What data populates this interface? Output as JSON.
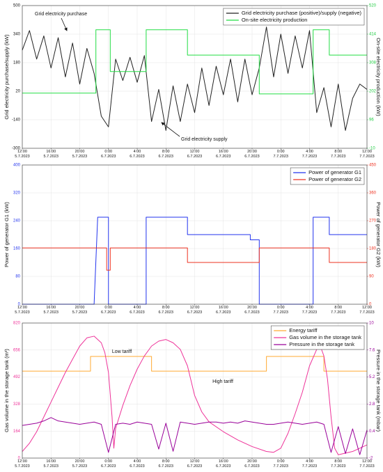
{
  "chart_data": [
    {
      "type": "line",
      "ylabel": "Grid electricity purchase/supply (kW)",
      "y2label": "On-site electricity production (kW)",
      "ycolor": "#111111",
      "y2color": "#22cc44",
      "xlim": [
        "2023-07-05T12:00",
        "2023-07-07T12:00"
      ],
      "xticks": [
        {
          "value": "2023-07-05T12:00",
          "label": "12:00 5.7.2023"
        },
        {
          "value": "2023-07-05T16:00",
          "label": "16:00 5.7.2023"
        },
        {
          "value": "2023-07-05T20:00",
          "label": "20:00 5.7.2023"
        },
        {
          "value": "2023-07-06T00:00",
          "label": "0:00 6.7.2023"
        },
        {
          "value": "2023-07-06T04:00",
          "label": "4:00 6.7.2023"
        },
        {
          "value": "2023-07-06T08:00",
          "label": "8:00 6.7.2023"
        },
        {
          "value": "2023-07-06T12:00",
          "label": "12:00 6.7.2023"
        },
        {
          "value": "2023-07-06T16:00",
          "label": "16:00 6.7.2023"
        },
        {
          "value": "2023-07-06T20:00",
          "label": "20:00 6.7.2023"
        },
        {
          "value": "2023-07-07T00:00",
          "label": "0:00 7.7.2023"
        },
        {
          "value": "2023-07-07T04:00",
          "label": "4:00 7.7.2023"
        },
        {
          "value": "2023-07-07T08:00",
          "label": "8:00 7.7.2023"
        },
        {
          "value": "2023-07-07T12:00",
          "label": "12:00 7.7.2023"
        }
      ],
      "ylim": [
        -300,
        500
      ],
      "yticks": [
        -300,
        -140,
        20,
        180,
        340,
        500
      ],
      "y2lim": [
        -10,
        520
      ],
      "y2ticks": [
        -10,
        96,
        202,
        308,
        414,
        520
      ],
      "grid": true,
      "legend": "upper right",
      "annotations": [
        "Grid electricity purchase",
        "Grid electricity supply"
      ],
      "series": [
        {
          "name": "Grid electricity purchase (positive)/supply (negative)",
          "color": "#222222",
          "x": [
            "2023-07-05T12:00",
            "2023-07-05T13:00",
            "2023-07-05T14:00",
            "2023-07-05T15:00",
            "2023-07-05T16:00",
            "2023-07-05T17:00",
            "2023-07-05T18:00",
            "2023-07-05T19:00",
            "2023-07-05T20:00",
            "2023-07-05T21:00",
            "2023-07-05T22:00",
            "2023-07-05T23:00",
            "2023-07-06T00:00",
            "2023-07-06T01:00",
            "2023-07-06T02:00",
            "2023-07-06T03:00",
            "2023-07-06T04:00",
            "2023-07-06T05:00",
            "2023-07-06T06:00",
            "2023-07-06T07:00",
            "2023-07-06T08:00",
            "2023-07-06T09:00",
            "2023-07-06T10:00",
            "2023-07-06T11:00",
            "2023-07-06T12:00",
            "2023-07-06T13:00",
            "2023-07-06T14:00",
            "2023-07-06T15:00",
            "2023-07-06T16:00",
            "2023-07-06T17:00",
            "2023-07-06T18:00",
            "2023-07-06T19:00",
            "2023-07-06T20:00",
            "2023-07-06T21:00",
            "2023-07-06T22:00",
            "2023-07-06T23:00",
            "2023-07-07T00:00",
            "2023-07-07T01:00",
            "2023-07-07T02:00",
            "2023-07-07T03:00",
            "2023-07-07T04:00",
            "2023-07-07T05:00",
            "2023-07-07T06:00",
            "2023-07-07T07:00",
            "2023-07-07T08:00",
            "2023-07-07T09:00",
            "2023-07-07T10:00",
            "2023-07-07T11:00",
            "2023-07-07T12:00"
          ],
          "values": [
            250,
            360,
            200,
            330,
            150,
            320,
            100,
            290,
            60,
            260,
            120,
            -120,
            -180,
            200,
            80,
            210,
            70,
            220,
            -150,
            30,
            -200,
            50,
            -150,
            60,
            -100,
            150,
            -60,
            160,
            0,
            200,
            -40,
            200,
            0,
            150,
            380,
            100,
            340,
            120,
            330,
            150,
            360,
            -100,
            40,
            -180,
            60,
            -200,
            -20,
            60,
            30
          ]
        },
        {
          "name": "On-site electricity production",
          "color": "#22dd44",
          "axis": "y2",
          "x": [
            "2023-07-05T12:00",
            "2023-07-05T22:15",
            "2023-07-05T22:15",
            "2023-07-06T00:15",
            "2023-07-06T00:15",
            "2023-07-06T05:15",
            "2023-07-06T05:15",
            "2023-07-06T11:00",
            "2023-07-06T11:00",
            "2023-07-06T21:00",
            "2023-07-06T21:00",
            "2023-07-07T04:30",
            "2023-07-07T04:30",
            "2023-07-07T06:45",
            "2023-07-07T06:45",
            "2023-07-07T12:00"
          ],
          "values": [
            195,
            195,
            430,
            430,
            275,
            275,
            430,
            430,
            336,
            336,
            192,
            192,
            430,
            430,
            336,
            336
          ]
        }
      ]
    },
    {
      "type": "line",
      "ylabel": "Power of generator G1 (kW)",
      "y2label": "Power of generator G2 (kW)",
      "ycolor": "#2233ee",
      "y2color": "#ee3322",
      "xlim": [
        "2023-07-05T12:00",
        "2023-07-07T12:00"
      ],
      "xticks": [
        {
          "value": "2023-07-05T12:00",
          "label": "12:00 5.7.2023"
        },
        {
          "value": "2023-07-05T16:00",
          "label": "16:00 5.7.2023"
        },
        {
          "value": "2023-07-05T20:00",
          "label": "20:00 5.7.2023"
        },
        {
          "value": "2023-07-06T00:00",
          "label": "0:00 6.7.2023"
        },
        {
          "value": "2023-07-06T04:00",
          "label": "4:00 6.7.2023"
        },
        {
          "value": "2023-07-06T08:00",
          "label": "8:00 6.7.2023"
        },
        {
          "value": "2023-07-06T12:00",
          "label": "12:00 6.7.2023"
        },
        {
          "value": "2023-07-06T16:00",
          "label": "16:00 6.7.2023"
        },
        {
          "value": "2023-07-06T20:00",
          "label": "20:00 6.7.2023"
        },
        {
          "value": "2023-07-07T00:00",
          "label": "0:00 7.7.2023"
        },
        {
          "value": "2023-07-07T04:00",
          "label": "4:00 7.7.2023"
        },
        {
          "value": "2023-07-07T08:00",
          "label": "8:00 7.7.2023"
        },
        {
          "value": "2023-07-07T12:00",
          "label": "12:00 7.7.2023"
        }
      ],
      "ylim": [
        0,
        400
      ],
      "yticks": [
        0,
        80,
        160,
        240,
        320,
        400
      ],
      "y2lim": [
        0,
        450
      ],
      "y2ticks": [
        0,
        90,
        180,
        270,
        360,
        450
      ],
      "grid": true,
      "legend": "upper right",
      "series": [
        {
          "name": "Power of generator G1",
          "color": "#2233ee",
          "x": [
            "2023-07-05T12:00",
            "2023-07-05T22:00",
            "2023-07-05T22:30",
            "2023-07-06T00:00",
            "2023-07-06T00:00",
            "2023-07-06T05:15",
            "2023-07-06T05:15",
            "2023-07-06T11:00",
            "2023-07-06T11:00",
            "2023-07-06T19:45",
            "2023-07-06T19:45",
            "2023-07-06T21:00",
            "2023-07-06T21:00",
            "2023-07-07T04:30",
            "2023-07-07T04:30",
            "2023-07-07T06:45",
            "2023-07-07T06:45",
            "2023-07-07T12:00"
          ],
          "values": [
            0,
            0,
            250,
            250,
            0,
            0,
            250,
            250,
            200,
            200,
            185,
            185,
            0,
            0,
            250,
            250,
            200,
            200
          ]
        },
        {
          "name": "Power of generator G2",
          "color": "#ee3322",
          "axis": "y2",
          "x": [
            "2023-07-05T12:00",
            "2023-07-05T23:45",
            "2023-07-05T23:45",
            "2023-07-06T00:15",
            "2023-07-06T00:15",
            "2023-07-06T11:00",
            "2023-07-06T11:00",
            "2023-07-06T21:00",
            "2023-07-06T21:00",
            "2023-07-07T06:45",
            "2023-07-07T06:45",
            "2023-07-07T12:00"
          ],
          "values": [
            182,
            182,
            110,
            110,
            182,
            182,
            135,
            135,
            182,
            182,
            135,
            135
          ]
        }
      ]
    },
    {
      "type": "line",
      "ylabel": "Gas volume in the storage tank (m³)",
      "y2label": "Pressure in the storage tank (mbar)",
      "ycolor": "#ee3399",
      "y2color": "#990099",
      "xlim": [
        "2023-07-05T12:00",
        "2023-07-07T12:00"
      ],
      "xticks": [
        {
          "value": "2023-07-05T12:00",
          "label": "12:00 5.7.2023"
        },
        {
          "value": "2023-07-05T16:00",
          "label": "16:00 5.7.2023"
        },
        {
          "value": "2023-07-05T20:00",
          "label": "20:00 5.7.2023"
        },
        {
          "value": "2023-07-06T00:00",
          "label": "0:00 6.7.2023"
        },
        {
          "value": "2023-07-06T04:00",
          "label": "4:00 6.7.2023"
        },
        {
          "value": "2023-07-06T08:00",
          "label": "8:00 6.7.2023"
        },
        {
          "value": "2023-07-06T12:00",
          "label": "12:00 6.7.2023"
        },
        {
          "value": "2023-07-06T16:00",
          "label": "16:00 6.7.2023"
        },
        {
          "value": "2023-07-06T20:00",
          "label": "20:00 6.7.2023"
        },
        {
          "value": "2023-07-07T00:00",
          "label": "0:00 7.7.2023"
        },
        {
          "value": "2023-07-07T04:00",
          "label": "4:00 7.7.2023"
        },
        {
          "value": "2023-07-07T08:00",
          "label": "8:00 7.7.2023"
        },
        {
          "value": "2023-07-07T12:00",
          "label": "12:00 7.7.2023"
        }
      ],
      "ylim": [
        0,
        820
      ],
      "yticks": [
        0,
        164,
        328,
        492,
        656,
        820
      ],
      "y2lim": [
        -2,
        10
      ],
      "y2ticks": [
        -2,
        0.4,
        2.8,
        5.2,
        7.6,
        10
      ],
      "grid": true,
      "legend": "upper right",
      "annotations": [
        "Low tariff",
        "High tariff"
      ],
      "series": [
        {
          "name": "Energy tariff",
          "color": "#ffaa33",
          "x": [
            "2023-07-05T12:00",
            "2023-07-05T21:30",
            "2023-07-05T21:30",
            "2023-07-06T06:00",
            "2023-07-06T06:00",
            "2023-07-06T22:00",
            "2023-07-06T22:00",
            "2023-07-07T06:00",
            "2023-07-07T06:00",
            "2023-07-07T12:00"
          ],
          "values": [
            528,
            528,
            617,
            617,
            528,
            528,
            617,
            617,
            528,
            528
          ]
        },
        {
          "name": "Gas volume in the storage tank",
          "color": "#ee3399",
          "x": [
            "2023-07-05T12:00",
            "2023-07-05T13:00",
            "2023-07-05T14:00",
            "2023-07-05T15:00",
            "2023-07-05T16:00",
            "2023-07-05T17:00",
            "2023-07-05T18:00",
            "2023-07-05T19:00",
            "2023-07-05T20:00",
            "2023-07-05T21:00",
            "2023-07-05T22:00",
            "2023-07-05T23:00",
            "2023-07-05T23:30",
            "2023-07-06T00:00",
            "2023-07-06T00:30",
            "2023-07-06T00:45",
            "2023-07-06T01:00",
            "2023-07-06T02:00",
            "2023-07-06T03:00",
            "2023-07-06T04:00",
            "2023-07-06T05:00",
            "2023-07-06T06:00",
            "2023-07-06T07:00",
            "2023-07-06T08:00",
            "2023-07-06T09:00",
            "2023-07-06T10:00",
            "2023-07-06T11:00",
            "2023-07-06T12:00",
            "2023-07-06T13:00",
            "2023-07-06T14:00",
            "2023-07-06T16:00",
            "2023-07-06T18:00",
            "2023-07-06T20:00",
            "2023-07-06T22:00",
            "2023-07-06T23:00",
            "2023-07-07T00:00",
            "2023-07-07T01:00",
            "2023-07-07T02:00",
            "2023-07-07T03:00",
            "2023-07-07T04:00",
            "2023-07-07T05:00",
            "2023-07-07T05:30",
            "2023-07-07T06:00",
            "2023-07-07T06:30",
            "2023-07-07T07:00",
            "2023-07-07T07:30",
            "2023-07-07T08:00",
            "2023-07-07T09:00",
            "2023-07-07T10:00",
            "2023-07-07T11:00",
            "2023-07-07T12:00"
          ],
          "values": [
            40,
            90,
            160,
            250,
            340,
            430,
            520,
            600,
            680,
            730,
            740,
            700,
            640,
            520,
            250,
            60,
            180,
            320,
            440,
            540,
            620,
            680,
            710,
            720,
            700,
            660,
            560,
            380,
            280,
            220,
            160,
            110,
            70,
            40,
            35,
            60,
            150,
            270,
            400,
            560,
            660,
            680,
            620,
            480,
            250,
            60,
            20,
            30,
            40,
            60,
            80
          ]
        },
        {
          "name": "Pressure in the storage tank",
          "color": "#990099",
          "axis": "y2",
          "x": [
            "2023-07-05T12:00",
            "2023-07-05T13:00",
            "2023-07-05T14:00",
            "2023-07-05T15:00",
            "2023-07-05T16:00",
            "2023-07-05T17:00",
            "2023-07-05T18:00",
            "2023-07-05T19:00",
            "2023-07-05T20:00",
            "2023-07-05T21:00",
            "2023-07-05T22:00",
            "2023-07-05T23:00",
            "2023-07-06T00:00",
            "2023-07-06T01:00",
            "2023-07-06T02:00",
            "2023-07-06T03:00",
            "2023-07-06T04:00",
            "2023-07-06T05:00",
            "2023-07-06T06:00",
            "2023-07-06T07:00",
            "2023-07-06T08:00",
            "2023-07-06T09:00",
            "2023-07-06T10:00",
            "2023-07-06T11:00",
            "2023-07-06T12:00",
            "2023-07-06T13:00",
            "2023-07-06T14:00",
            "2023-07-06T15:00",
            "2023-07-06T16:00",
            "2023-07-06T17:00",
            "2023-07-06T18:00",
            "2023-07-06T19:00",
            "2023-07-06T20:00",
            "2023-07-06T21:00",
            "2023-07-06T22:00",
            "2023-07-06T23:00",
            "2023-07-07T00:00",
            "2023-07-07T01:00",
            "2023-07-07T02:00",
            "2023-07-07T03:00",
            "2023-07-07T04:00",
            "2023-07-07T05:00",
            "2023-07-07T06:00",
            "2023-07-07T07:00",
            "2023-07-07T08:00",
            "2023-07-07T09:00",
            "2023-07-07T10:00",
            "2023-07-07T11:00",
            "2023-07-07T12:00"
          ],
          "values": [
            0.9,
            1.0,
            1.1,
            1.3,
            1.6,
            1.3,
            1.2,
            1.1,
            1.0,
            1.1,
            1.2,
            1.0,
            -1.5,
            1.0,
            1.1,
            1.0,
            1.2,
            1.1,
            1.0,
            -1.2,
            1.1,
            -1.4,
            1.2,
            1.1,
            1.0,
            1.1,
            1.2,
            1.2,
            1.1,
            1.2,
            1.1,
            1.3,
            1.2,
            1.1,
            1.0,
            1.0,
            1.1,
            1.2,
            1.1,
            1.0,
            1.1,
            1.2,
            1.0,
            -1.5,
            0.8,
            -1.6,
            0.6,
            -1.7,
            0.5
          ]
        }
      ]
    }
  ]
}
